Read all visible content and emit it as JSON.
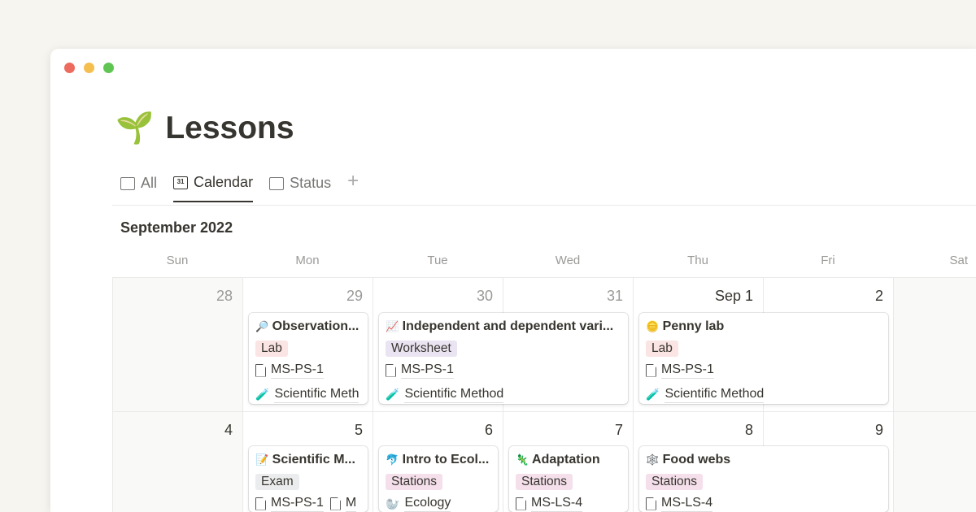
{
  "window": {
    "controls": [
      {
        "name": "close",
        "color": "#ed6a5e"
      },
      {
        "name": "minimize",
        "color": "#f5bf4f"
      },
      {
        "name": "maximize",
        "color": "#61c554"
      }
    ]
  },
  "page": {
    "icon": "🌱",
    "title": "Lessons"
  },
  "tabs": [
    {
      "label": "All",
      "icon": "table-icon"
    },
    {
      "label": "Calendar",
      "icon": "calendar-icon",
      "active": true
    },
    {
      "label": "Status",
      "icon": "board-icon"
    }
  ],
  "add_view": "+",
  "calendar": {
    "month": "September 2022",
    "weekdays": [
      "Sun",
      "Mon",
      "Tue",
      "Wed",
      "Thu",
      "Fri",
      "Sat"
    ],
    "weeks": [
      [
        "28",
        "29",
        "30",
        "31",
        "Sep 1",
        "2",
        ""
      ],
      [
        "4",
        "5",
        "6",
        "7",
        "8",
        "9",
        ""
      ]
    ],
    "events": [
      {
        "icon": "🔎",
        "title": "Observation...",
        "tag": "Lab",
        "tag_bg": "#fbe4e4",
        "props": [
          {
            "icon": "doc",
            "text": "MS-PS-1"
          },
          {
            "icon": "🧪",
            "text": "Scientific Meth"
          }
        ]
      },
      {
        "icon": "📈",
        "title": "Independent and dependent vari...",
        "tag": "Worksheet",
        "tag_bg": "#eae4f2",
        "props": [
          {
            "icon": "doc",
            "text": "MS-PS-1"
          },
          {
            "icon": "🧪",
            "text": "Scientific Method"
          }
        ]
      },
      {
        "icon": "🪙",
        "title": "Penny lab",
        "tag": "Lab",
        "tag_bg": "#fbe4e4",
        "props": [
          {
            "icon": "doc",
            "text": "MS-PS-1"
          },
          {
            "icon": "🧪",
            "text": "Scientific Method"
          }
        ]
      },
      {
        "icon": "📝",
        "title": "Scientific M...",
        "tag": "Exam",
        "tag_bg": "#ebeced",
        "props": [
          {
            "icon": "doc",
            "text": "MS-PS-1"
          },
          {
            "icon": "doc",
            "text": "M"
          }
        ]
      },
      {
        "icon": "🐬",
        "title": "Intro to Ecol...",
        "tag": "Stations",
        "tag_bg": "#f4dfeb",
        "props": [
          {
            "icon": "🦭",
            "text": "Ecology"
          }
        ]
      },
      {
        "icon": "🦎",
        "title": "Adaptation",
        "tag": "Stations",
        "tag_bg": "#f4dfeb",
        "props": [
          {
            "icon": "doc",
            "text": "MS-LS-4"
          }
        ]
      },
      {
        "icon": "🕸️",
        "title": "Food webs",
        "tag": "Stations",
        "tag_bg": "#f4dfeb",
        "props": [
          {
            "icon": "doc",
            "text": "MS-LS-4"
          }
        ]
      }
    ]
  }
}
